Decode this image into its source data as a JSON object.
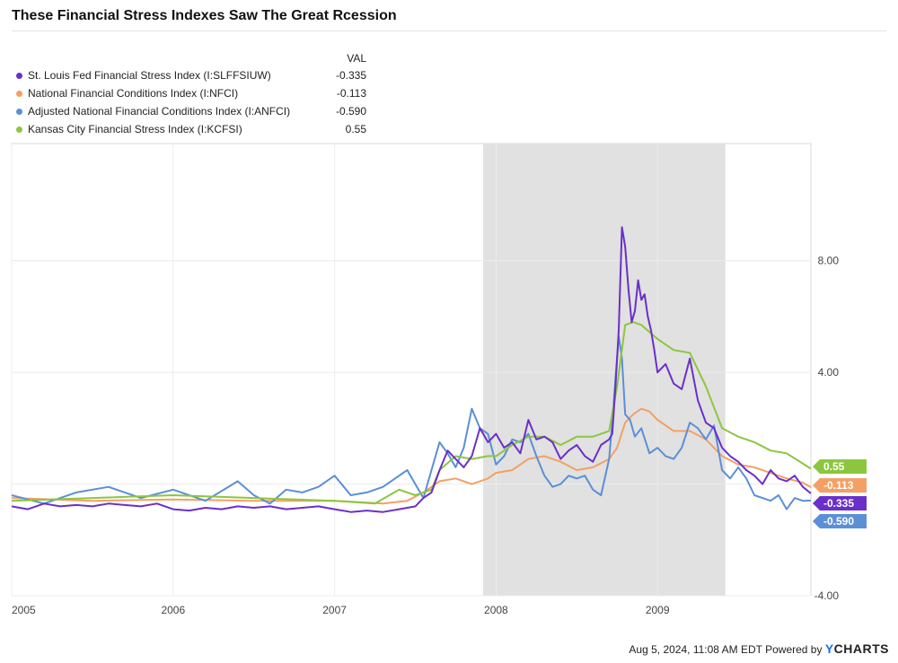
{
  "title": "These Financial Stress Indexes Saw The Great Rcession",
  "legend_header": "VAL",
  "footer": {
    "timestamp": "Aug 5, 2024, 11:08 AM EDT",
    "powered_by": "Powered by",
    "brand_y": "Y",
    "brand_rest": "CHARTS"
  },
  "chart_data": {
    "type": "line",
    "title": "These Financial Stress Indexes Saw The Great Rcession",
    "xlabel": "",
    "ylabel": "",
    "xlim": [
      2005.0,
      2009.95
    ],
    "ylim": [
      -4.0,
      12.2
    ],
    "y_ticks": [
      -4.0,
      4.0,
      8.0
    ],
    "y_tick_labels": [
      "-4.00",
      "4.00",
      "8.00"
    ],
    "x_ticks": [
      2005,
      2006,
      2007,
      2008,
      2009
    ],
    "x_tick_labels": [
      "2005",
      "2006",
      "2007",
      "2008",
      "2009"
    ],
    "grid": true,
    "recession_shade": [
      2007.92,
      2009.42
    ],
    "series": [
      {
        "name": "St. Louis Fed Financial Stress Index (I:SLFFSIUW)",
        "value_label": "-0.335",
        "color": "#6b2fc9",
        "x": [
          2005.0,
          2005.1,
          2005.2,
          2005.3,
          2005.4,
          2005.5,
          2005.6,
          2005.7,
          2005.8,
          2005.9,
          2006.0,
          2006.1,
          2006.2,
          2006.3,
          2006.4,
          2006.5,
          2006.6,
          2006.7,
          2006.8,
          2006.9,
          2007.0,
          2007.1,
          2007.2,
          2007.3,
          2007.4,
          2007.5,
          2007.55,
          2007.6,
          2007.65,
          2007.7,
          2007.75,
          2007.8,
          2007.85,
          2007.9,
          2007.95,
          2008.0,
          2008.05,
          2008.1,
          2008.15,
          2008.2,
          2008.25,
          2008.3,
          2008.35,
          2008.4,
          2008.45,
          2008.5,
          2008.55,
          2008.6,
          2008.65,
          2008.7,
          2008.72,
          2008.74,
          2008.76,
          2008.78,
          2008.8,
          2008.82,
          2008.84,
          2008.86,
          2008.88,
          2008.9,
          2008.92,
          2008.94,
          2008.96,
          2008.98,
          2009.0,
          2009.05,
          2009.1,
          2009.15,
          2009.2,
          2009.25,
          2009.3,
          2009.35,
          2009.4,
          2009.45,
          2009.5,
          2009.55,
          2009.6,
          2009.65,
          2009.7,
          2009.75,
          2009.8,
          2009.85,
          2009.9,
          2009.95
        ],
        "y": [
          -0.8,
          -0.9,
          -0.7,
          -0.8,
          -0.75,
          -0.8,
          -0.7,
          -0.75,
          -0.8,
          -0.7,
          -0.9,
          -0.95,
          -0.85,
          -0.9,
          -0.8,
          -0.85,
          -0.8,
          -0.9,
          -0.85,
          -0.8,
          -0.9,
          -1.0,
          -0.95,
          -1.0,
          -0.9,
          -0.8,
          -0.5,
          -0.3,
          0.5,
          1.2,
          0.9,
          0.6,
          1.0,
          2.0,
          1.5,
          1.8,
          1.3,
          1.5,
          1.1,
          2.3,
          1.6,
          1.7,
          1.5,
          0.9,
          1.2,
          1.4,
          1.0,
          0.8,
          1.4,
          1.6,
          1.8,
          3.5,
          5.5,
          9.2,
          8.5,
          7.0,
          5.8,
          6.2,
          7.3,
          6.6,
          6.8,
          6.0,
          5.5,
          4.8,
          4.0,
          4.3,
          3.6,
          3.4,
          4.5,
          3.0,
          2.2,
          2.0,
          1.3,
          1.0,
          0.8,
          0.5,
          0.3,
          0.0,
          0.5,
          0.2,
          0.1,
          0.3,
          -0.1,
          -0.335
        ]
      },
      {
        "name": "National Financial Conditions Index (I:NFCI)",
        "value_label": "-0.113",
        "color": "#f4a064",
        "x": [
          2005.0,
          2005.5,
          2006.0,
          2006.5,
          2007.0,
          2007.3,
          2007.45,
          2007.55,
          2007.65,
          2007.75,
          2007.85,
          2007.95,
          2008.0,
          2008.1,
          2008.2,
          2008.3,
          2008.4,
          2008.5,
          2008.6,
          2008.7,
          2008.75,
          2008.8,
          2008.85,
          2008.9,
          2008.95,
          2009.0,
          2009.1,
          2009.2,
          2009.3,
          2009.4,
          2009.5,
          2009.6,
          2009.7,
          2009.8,
          2009.9,
          2009.95
        ],
        "y": [
          -0.5,
          -0.6,
          -0.55,
          -0.6,
          -0.6,
          -0.7,
          -0.6,
          -0.3,
          0.1,
          0.2,
          0.0,
          0.2,
          0.4,
          0.5,
          0.9,
          1.0,
          0.8,
          0.5,
          0.6,
          0.9,
          1.3,
          2.2,
          2.5,
          2.7,
          2.6,
          2.3,
          1.9,
          1.9,
          1.6,
          1.0,
          0.7,
          0.6,
          0.4,
          0.2,
          0.05,
          -0.113
        ]
      },
      {
        "name": "Adjusted National Financial Conditions Index (I:ANFCI)",
        "value_label": "-0.590",
        "color": "#5b8fd6",
        "x": [
          2005.0,
          2005.2,
          2005.4,
          2005.6,
          2005.8,
          2006.0,
          2006.2,
          2006.4,
          2006.5,
          2006.6,
          2006.7,
          2006.8,
          2006.9,
          2007.0,
          2007.1,
          2007.2,
          2007.3,
          2007.4,
          2007.45,
          2007.5,
          2007.55,
          2007.6,
          2007.65,
          2007.7,
          2007.75,
          2007.8,
          2007.85,
          2007.9,
          2007.95,
          2008.0,
          2008.05,
          2008.1,
          2008.15,
          2008.2,
          2008.25,
          2008.3,
          2008.35,
          2008.4,
          2008.45,
          2008.5,
          2008.55,
          2008.6,
          2008.65,
          2008.7,
          2008.72,
          2008.74,
          2008.76,
          2008.78,
          2008.8,
          2008.83,
          2008.86,
          2008.9,
          2008.95,
          2009.0,
          2009.05,
          2009.1,
          2009.15,
          2009.2,
          2009.25,
          2009.3,
          2009.35,
          2009.4,
          2009.45,
          2009.5,
          2009.55,
          2009.6,
          2009.65,
          2009.7,
          2009.75,
          2009.8,
          2009.85,
          2009.9,
          2009.95
        ],
        "y": [
          -0.4,
          -0.7,
          -0.3,
          -0.1,
          -0.5,
          -0.2,
          -0.6,
          0.1,
          -0.4,
          -0.7,
          -0.2,
          -0.3,
          -0.1,
          0.3,
          -0.4,
          -0.3,
          -0.1,
          0.3,
          0.5,
          0.0,
          -0.5,
          0.5,
          1.5,
          1.1,
          0.6,
          1.3,
          2.7,
          2.0,
          1.8,
          0.7,
          1.0,
          1.6,
          1.5,
          1.8,
          1.0,
          0.3,
          -0.1,
          0.0,
          0.3,
          0.2,
          0.3,
          -0.2,
          -0.4,
          0.9,
          2.2,
          3.8,
          5.3,
          4.5,
          2.5,
          2.3,
          1.7,
          2.0,
          1.1,
          1.3,
          1.0,
          0.9,
          1.3,
          2.2,
          2.0,
          1.6,
          2.1,
          0.5,
          0.2,
          0.6,
          0.2,
          -0.4,
          -0.5,
          -0.6,
          -0.4,
          -0.9,
          -0.5,
          -0.6,
          -0.59
        ]
      },
      {
        "name": "Kansas City Financial Stress Index (I:KCFSI)",
        "value_label": "0.55",
        "color": "#8cc63f",
        "x": [
          2005.0,
          2005.5,
          2006.0,
          2006.5,
          2007.0,
          2007.25,
          2007.4,
          2007.5,
          2007.6,
          2007.65,
          2007.75,
          2007.85,
          2007.95,
          2008.0,
          2008.1,
          2008.2,
          2008.3,
          2008.4,
          2008.5,
          2008.6,
          2008.7,
          2008.75,
          2008.8,
          2008.85,
          2008.9,
          2009.0,
          2009.1,
          2009.2,
          2009.3,
          2009.4,
          2009.5,
          2009.6,
          2009.7,
          2009.8,
          2009.95
        ],
        "y": [
          -0.6,
          -0.5,
          -0.4,
          -0.5,
          -0.6,
          -0.7,
          -0.2,
          -0.4,
          -0.2,
          0.5,
          1.0,
          0.9,
          1.0,
          1.0,
          1.4,
          1.7,
          1.7,
          1.4,
          1.7,
          1.7,
          1.9,
          3.5,
          5.7,
          5.8,
          5.7,
          5.2,
          4.8,
          4.7,
          3.5,
          2.0,
          1.7,
          1.5,
          1.2,
          1.1,
          0.55
        ]
      }
    ]
  }
}
